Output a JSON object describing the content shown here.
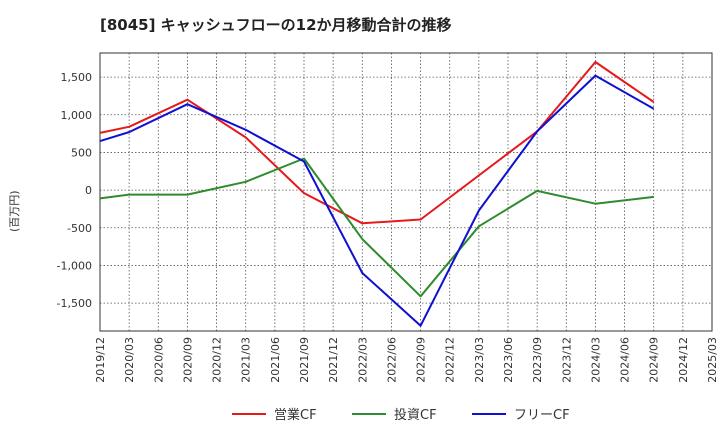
{
  "chart_data": {
    "type": "line",
    "title": "[8045]  キャッシュフローの12か月移動合計の推移",
    "ylabel": "(百万円)",
    "xlabel": "",
    "ylim": [
      -1870,
      1820
    ],
    "y_ticks": [
      1500,
      1000,
      500,
      0,
      -500,
      -1000,
      -1500
    ],
    "y_tick_labels": [
      "1,500",
      "1,000",
      "500",
      "0",
      "-500",
      "-1,000",
      "-1,500"
    ],
    "categories": [
      "2019/12",
      "2020/03",
      "2020/06",
      "2020/09",
      "2020/12",
      "2021/03",
      "2021/06",
      "2021/09",
      "2021/12",
      "2022/03",
      "2022/06",
      "2022/09",
      "2022/12",
      "2023/03",
      "2023/06",
      "2023/09",
      "2023/12",
      "2024/03",
      "2024/06",
      "2024/09",
      "2024/12",
      "2025/03"
    ],
    "grid": true,
    "legend_position": "bottom",
    "series": [
      {
        "name": "営業CF",
        "color": "#e41a1c",
        "values": [
          760,
          840,
          null,
          1200,
          null,
          700,
          null,
          -40,
          null,
          -440,
          null,
          -390,
          null,
          null,
          null,
          780,
          null,
          1700,
          null,
          1170,
          null,
          null
        ]
      },
      {
        "name": "投資CF",
        "color": "#2e8b2e",
        "values": [
          -110,
          -60,
          null,
          -60,
          null,
          110,
          null,
          420,
          null,
          -650,
          null,
          -1410,
          null,
          -480,
          null,
          -10,
          null,
          -180,
          null,
          -90,
          null,
          null
        ]
      },
      {
        "name": "フリーCF",
        "color": "#1010d0",
        "values": [
          650,
          770,
          null,
          1140,
          null,
          800,
          null,
          380,
          null,
          -1100,
          null,
          -1800,
          null,
          -270,
          null,
          780,
          null,
          1520,
          null,
          1080,
          null,
          null
        ]
      }
    ]
  }
}
